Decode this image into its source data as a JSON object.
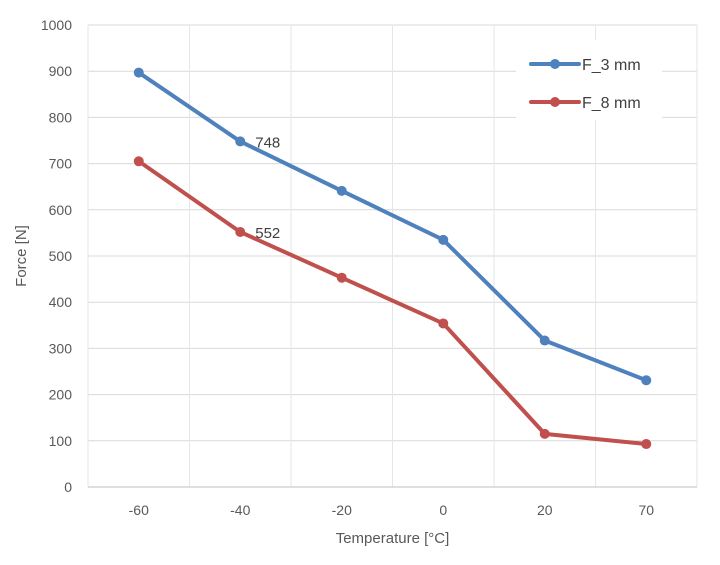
{
  "chart_data": {
    "type": "line",
    "title": "",
    "xlabel": "Temperature [°C]",
    "ylabel": "Force [N]",
    "categories": [
      "-60",
      "-40",
      "-20",
      "0",
      "20",
      "70"
    ],
    "ylim": [
      0,
      1000
    ],
    "yticks": [
      "0",
      "100",
      "200",
      "300",
      "400",
      "500",
      "600",
      "700",
      "800",
      "900",
      "1000"
    ],
    "grid": true,
    "legend_position": "top-right",
    "series": [
      {
        "name": "F_3 mm",
        "color": "#4f81bd",
        "values": [
          897,
          748,
          641,
          535,
          317,
          231
        ]
      },
      {
        "name": "F_8 mm",
        "color": "#c0504d",
        "values": [
          705,
          552,
          453,
          354,
          115,
          93
        ]
      }
    ],
    "annotations": [
      {
        "text": "748",
        "series": 0,
        "index": 1
      },
      {
        "text": "552",
        "series": 1,
        "index": 1
      }
    ]
  }
}
